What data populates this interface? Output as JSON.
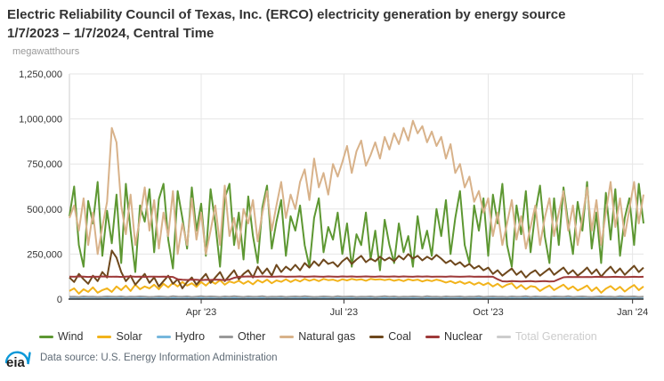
{
  "header": {
    "title": "Electric Reliability Council of Texas, Inc. (ERCO) electricity generation by energy source 1/7/2023 – 1/7/2024, Central Time",
    "unit_label": "megawatthours"
  },
  "footer": {
    "logo_text": "eia",
    "source_text": "Data source: U.S. Energy Information Administration"
  },
  "chart_data": {
    "type": "line",
    "title": "Electric Reliability Council of Texas, Inc. (ERCO) electricity generation by energy source 1/7/2023 – 1/7/2024, Central Time",
    "xlabel": "",
    "ylabel": "megawatthours",
    "value_unit": "MWh",
    "ylim": [
      0,
      1250000
    ],
    "yticks": [
      0,
      250000,
      500000,
      750000,
      1000000,
      1250000
    ],
    "ytick_labels": [
      "0",
      "250,000",
      "500,000",
      "750,000",
      "1,000,000",
      "1,250,000"
    ],
    "x_start_date": "1/7/2023",
    "x_end_date": "1/7/2024",
    "timezone": "Central Time",
    "x_total_days": 366,
    "sample_interval_days": 3,
    "sample_note": "values estimated from chart, sampled every 3 days from 1/7/2023 (day 0) to 1/7/2024 (day 366)",
    "grid": true,
    "legend_position": "bottom",
    "xticks": [
      {
        "label": "Apr '23",
        "day": 84
      },
      {
        "label": "Jul '23",
        "day": 175
      },
      {
        "label": "Oct '23",
        "day": 267
      },
      {
        "label": "Jan '24",
        "day": 359
      }
    ],
    "legend": [
      {
        "label": "Wind",
        "color": "#5D9732",
        "disabled": false
      },
      {
        "label": "Solar",
        "color": "#F2B31B",
        "disabled": false
      },
      {
        "label": "Hydro",
        "color": "#76B7DC",
        "disabled": false
      },
      {
        "label": "Other",
        "color": "#999999",
        "disabled": false
      },
      {
        "label": "Natural gas",
        "color": "#D8B28A",
        "disabled": false
      },
      {
        "label": "Coal",
        "color": "#6E481D",
        "disabled": false
      },
      {
        "label": "Nuclear",
        "color": "#9E3A3A",
        "disabled": false
      },
      {
        "label": "Total Generation",
        "color": "#CCCCCC",
        "disabled": true
      }
    ],
    "series": [
      {
        "id": "wind",
        "name": "Wind",
        "color": "#5D9732",
        "values": [
          460000,
          625000,
          300000,
          180000,
          545000,
          420000,
          650000,
          240000,
          490000,
          310000,
          580000,
          200000,
          640000,
          380000,
          150000,
          520000,
          430000,
          610000,
          260000,
          555000,
          640000,
          330000,
          170000,
          600000,
          450000,
          280000,
          620000,
          380000,
          530000,
          240000,
          610000,
          420000,
          180000,
          560000,
          640000,
          300000,
          480000,
          220000,
          570000,
          350000,
          200000,
          510000,
          630000,
          280000,
          430000,
          550000,
          240000,
          460000,
          380000,
          520000,
          300000,
          180000,
          450000,
          560000,
          260000,
          400000,
          330000,
          480000,
          250000,
          420000,
          180000,
          360000,
          300000,
          480000,
          220000,
          380000,
          160000,
          440000,
          300000,
          200000,
          420000,
          260000,
          350000,
          180000,
          460000,
          280000,
          380000,
          240000,
          500000,
          350000,
          550000,
          250000,
          450000,
          600000,
          300000,
          200000,
          520000,
          380000,
          560000,
          240000,
          580000,
          420000,
          640000,
          300000,
          180000,
          520000,
          360000,
          600000,
          260000,
          480000,
          630000,
          350000,
          200000,
          560000,
          300000,
          620000,
          420000,
          250000,
          540000,
          380000,
          650000,
          280000,
          480000,
          200000,
          590000,
          330000,
          610000,
          240000,
          450000,
          560000,
          300000,
          640000,
          420000
        ]
      },
      {
        "id": "solar",
        "name": "Solar",
        "color": "#F2B31B",
        "values": [
          45000,
          60000,
          30000,
          55000,
          40000,
          65000,
          35000,
          50000,
          60000,
          40000,
          70000,
          50000,
          75000,
          45000,
          80000,
          55000,
          70000,
          60000,
          80000,
          55000,
          85000,
          65000,
          90000,
          70000,
          95000,
          75000,
          88000,
          68000,
          95000,
          75000,
          100000,
          85000,
          105000,
          80000,
          98000,
          90000,
          102000,
          85000,
          100000,
          82000,
          105000,
          92000,
          108000,
          88000,
          104000,
          96000,
          110000,
          95000,
          108000,
          98000,
          112000,
          102000,
          110000,
          100000,
          112000,
          105000,
          108000,
          100000,
          110000,
          104000,
          112000,
          106000,
          110000,
          102000,
          112000,
          108000,
          110000,
          105000,
          110000,
          102000,
          108000,
          100000,
          110000,
          104000,
          108000,
          98000,
          106000,
          100000,
          108000,
          102000,
          92000,
          100000,
          88000,
          98000,
          85000,
          95000,
          80000,
          92000,
          78000,
          90000,
          70000,
          85000,
          65000,
          80000,
          88000,
          60000,
          78000,
          55000,
          72000,
          68000,
          45000,
          62000,
          75000,
          50000,
          65000,
          80000,
          55000,
          70000,
          48000,
          60000,
          75000,
          45000,
          65000,
          35000,
          58000,
          72000,
          50000,
          68000,
          42000,
          62000,
          78000,
          50000,
          70000
        ]
      },
      {
        "id": "hydro",
        "name": "Hydro",
        "color": "#76B7DC",
        "values": [
          3000,
          4000,
          2000,
          5000,
          3000,
          4000,
          2000,
          3000,
          5000,
          4000,
          3000,
          5000,
          2000,
          4000,
          3000,
          5000,
          4000,
          2000,
          3000,
          5000,
          4000,
          2000,
          6000,
          4000,
          3000,
          5000,
          2000,
          4000,
          6000,
          3000,
          5000,
          4000,
          2000,
          5000,
          3000,
          6000,
          4000,
          2000,
          5000,
          3000,
          4000,
          6000,
          2000,
          4000,
          3000,
          5000,
          2000,
          4000,
          5000,
          3000,
          6000,
          4000,
          2000,
          3000,
          5000,
          4000,
          2000,
          6000,
          3000,
          4000,
          5000,
          2000,
          4000,
          3000,
          5000,
          2000,
          4000,
          6000,
          3000,
          5000,
          2000,
          4000,
          3000,
          5000,
          4000,
          2000,
          6000,
          3000,
          4000,
          2000,
          5000,
          3000,
          4000,
          5000,
          2000,
          4000,
          3000,
          6000,
          2000,
          4000,
          5000,
          3000,
          4000,
          2000,
          5000,
          3000,
          4000,
          6000,
          2000,
          5000,
          3000,
          4000,
          2000,
          5000,
          4000,
          3000,
          6000,
          2000,
          4000,
          5000,
          3000,
          2000,
          4000,
          5000,
          3000,
          4000,
          2000,
          6000,
          3000,
          4000,
          5000,
          2000,
          4000
        ]
      },
      {
        "id": "other",
        "name": "Other",
        "color": "#999999",
        "values": [
          13000,
          14000,
          12000,
          15000,
          13000,
          14000,
          12000,
          13000,
          15000,
          14000,
          13000,
          15000,
          12000,
          14000,
          13000,
          15000,
          14000,
          12000,
          13000,
          15000,
          14000,
          12000,
          16000,
          14000,
          13000,
          15000,
          12000,
          14000,
          16000,
          13000,
          15000,
          14000,
          12000,
          15000,
          13000,
          16000,
          14000,
          12000,
          15000,
          13000,
          14000,
          16000,
          12000,
          14000,
          13000,
          15000,
          12000,
          14000,
          15000,
          13000,
          16000,
          14000,
          12000,
          13000,
          15000,
          14000,
          12000,
          16000,
          13000,
          14000,
          15000,
          12000,
          14000,
          13000,
          15000,
          12000,
          14000,
          16000,
          13000,
          15000,
          12000,
          14000,
          13000,
          15000,
          14000,
          12000,
          16000,
          13000,
          14000,
          12000,
          15000,
          13000,
          14000,
          15000,
          12000,
          14000,
          13000,
          16000,
          12000,
          14000,
          15000,
          13000,
          14000,
          12000,
          15000,
          13000,
          14000,
          16000,
          12000,
          15000,
          13000,
          14000,
          12000,
          15000,
          14000,
          13000,
          16000,
          12000,
          14000,
          15000,
          13000,
          12000,
          14000,
          15000,
          13000,
          14000,
          12000,
          16000,
          13000,
          14000,
          15000,
          12000,
          14000
        ]
      },
      {
        "id": "natural-gas",
        "name": "Natural gas",
        "color": "#D8B28A",
        "values": [
          450000,
          520000,
          380000,
          560000,
          300000,
          480000,
          250000,
          400000,
          540000,
          950000,
          870000,
          520000,
          360000,
          580000,
          300000,
          450000,
          620000,
          380000,
          550000,
          280000,
          480000,
          350000,
          600000,
          250000,
          420000,
          300000,
          560000,
          330000,
          480000,
          250000,
          380000,
          520000,
          300000,
          630000,
          350000,
          450000,
          280000,
          500000,
          420000,
          550000,
          320000,
          480000,
          600000,
          380000,
          520000,
          650000,
          450000,
          580000,
          500000,
          650000,
          720000,
          550000,
          780000,
          620000,
          700000,
          580000,
          750000,
          680000,
          760000,
          850000,
          700000,
          820000,
          880000,
          740000,
          800000,
          870000,
          780000,
          900000,
          830000,
          920000,
          860000,
          950000,
          880000,
          990000,
          920000,
          960000,
          870000,
          930000,
          850000,
          900000,
          780000,
          860000,
          700000,
          750000,
          620000,
          680000,
          540000,
          600000,
          480000,
          560000,
          350000,
          480000,
          300000,
          420000,
          550000,
          330000,
          460000,
          280000,
          400000,
          520000,
          300000,
          450000,
          560000,
          350000,
          480000,
          600000,
          380000,
          520000,
          300000,
          450000,
          620000,
          380000,
          550000,
          300000,
          480000,
          650000,
          400000,
          560000,
          350000,
          500000,
          650000,
          420000,
          580000
        ]
      },
      {
        "id": "coal",
        "name": "Coal",
        "color": "#6E481D",
        "values": [
          120000,
          95000,
          140000,
          110000,
          85000,
          130000,
          100000,
          150000,
          120000,
          270000,
          230000,
          150000,
          100000,
          130000,
          80000,
          110000,
          140000,
          90000,
          120000,
          70000,
          100000,
          130000,
          85000,
          110000,
          60000,
          95000,
          120000,
          80000,
          110000,
          140000,
          90000,
          120000,
          150000,
          100000,
          130000,
          160000,
          110000,
          140000,
          160000,
          120000,
          180000,
          140000,
          170000,
          130000,
          190000,
          150000,
          180000,
          160000,
          190000,
          160000,
          200000,
          175000,
          210000,
          185000,
          220000,
          195000,
          205000,
          180000,
          210000,
          230000,
          195000,
          220000,
          240000,
          205000,
          225000,
          210000,
          235000,
          215000,
          230000,
          210000,
          240000,
          220000,
          250000,
          225000,
          240000,
          215000,
          235000,
          220000,
          245000,
          225000,
          200000,
          215000,
          190000,
          205000,
          180000,
          195000,
          170000,
          185000,
          160000,
          175000,
          140000,
          160000,
          130000,
          150000,
          170000,
          135000,
          155000,
          120000,
          145000,
          160000,
          130000,
          150000,
          170000,
          135000,
          155000,
          175000,
          140000,
          160000,
          130000,
          150000,
          175000,
          140000,
          165000,
          125000,
          155000,
          180000,
          145000,
          170000,
          135000,
          160000,
          185000,
          150000,
          175000
        ]
      },
      {
        "id": "nuclear",
        "name": "Nuclear",
        "color": "#9E3A3A",
        "values": [
          125000,
          124000,
          126000,
          125000,
          123000,
          125000,
          124000,
          126000,
          125000,
          124000,
          125000,
          123000,
          125000,
          126000,
          124000,
          125000,
          123000,
          125000,
          125000,
          124000,
          125000,
          124000,
          123000,
          110000,
          107000,
          106000,
          108000,
          107000,
          105000,
          107000,
          106000,
          108000,
          107000,
          105000,
          108000,
          118000,
          124000,
          125000,
          126000,
          125000,
          124000,
          126000,
          125000,
          124000,
          125000,
          126000,
          124000,
          125000,
          125000,
          126000,
          124000,
          125000,
          126000,
          125000,
          124000,
          126000,
          125000,
          124000,
          126000,
          125000,
          126000,
          124000,
          125000,
          126000,
          125000,
          124000,
          126000,
          125000,
          125000,
          126000,
          124000,
          126000,
          125000,
          124000,
          126000,
          125000,
          126000,
          124000,
          125000,
          125000,
          124000,
          126000,
          125000,
          124000,
          125000,
          126000,
          124000,
          125000,
          124000,
          125000,
          124000,
          110000,
          99000,
          98000,
          100000,
          99000,
          98000,
          99000,
          100000,
          98000,
          99000,
          100000,
          98000,
          99000,
          110000,
          121000,
          123000,
          122000,
          123000,
          122000,
          123000,
          122000,
          124000,
          123000,
          122000,
          123000,
          124000,
          123000,
          122000,
          123000,
          124000,
          123000,
          124000
        ]
      }
    ]
  }
}
